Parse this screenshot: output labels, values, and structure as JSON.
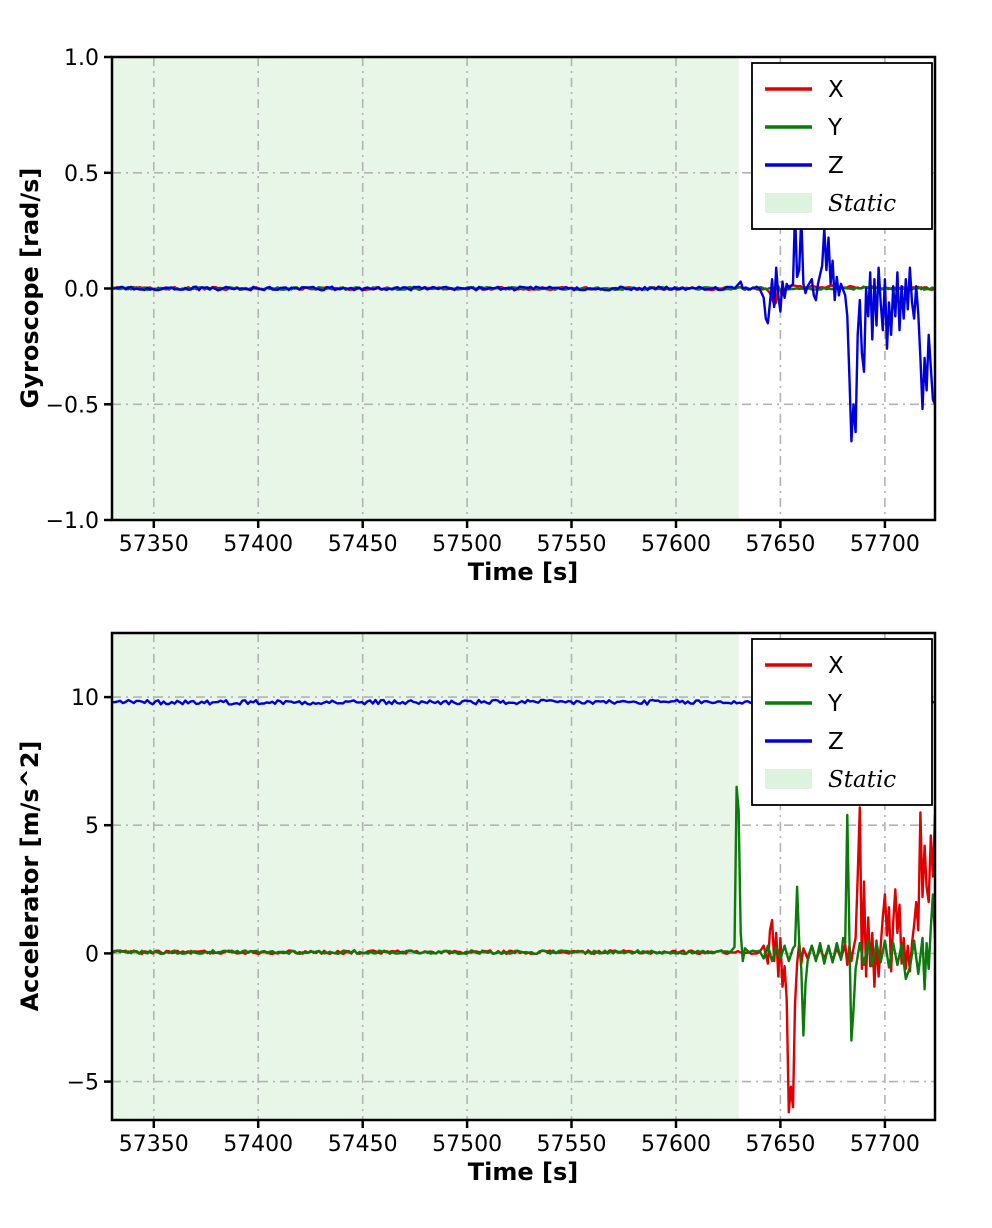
{
  "style": {
    "background": "#ffffff",
    "grid_color": "#b3b3b3",
    "spine_color": "#000000",
    "static_fill": "#e7f6e7",
    "legend_static_fill": "#ddf3dd"
  },
  "chart_data": [
    {
      "type": "line",
      "title": "",
      "xlabel": "Time [s]",
      "ylabel": "Gyroscope [rad/s]",
      "xlim": [
        57330,
        57724
      ],
      "ylim": [
        -1.0,
        1.0
      ],
      "xticks": [
        57350,
        57400,
        57450,
        57500,
        57550,
        57600,
        57650,
        57700
      ],
      "xtick_labels": [
        "57350",
        "57400",
        "57450",
        "57500",
        "57550",
        "57600",
        "57650",
        "57700"
      ],
      "yticks": [
        -1.0,
        -0.5,
        0.0,
        0.5,
        1.0
      ],
      "ytick_labels": [
        "−1.0",
        "−0.5",
        "0.0",
        "0.5",
        "1.0"
      ],
      "grid": true,
      "static_region": {
        "label": "Static",
        "x0": 57330,
        "x1": 57630
      },
      "legend": {
        "position": "upper right",
        "entries": [
          {
            "label": "X",
            "type": "line",
            "color": "#e00000"
          },
          {
            "label": "Y",
            "type": "line",
            "color": "#0a7a0a"
          },
          {
            "label": "Z",
            "type": "line",
            "color": "#0000dd"
          },
          {
            "label": "Static",
            "type": "patch",
            "color": "#ddf3dd",
            "italic": true
          }
        ]
      },
      "series": [
        {
          "name": "X",
          "color": "#e00000",
          "noise": 0.006,
          "points": [
            [
              57330,
              0
            ],
            [
              57643,
              0
            ],
            [
              57645,
              -0.02
            ],
            [
              57647,
              -0.07
            ],
            [
              57648,
              -0.06
            ],
            [
              57649,
              0.01
            ],
            [
              57651,
              -0.03
            ],
            [
              57653,
              0.01
            ],
            [
              57724,
              0
            ]
          ]
        },
        {
          "name": "Y",
          "color": "#0a7a0a",
          "noise": 0.006,
          "points": [
            [
              57330,
              0
            ],
            [
              57724,
              0
            ]
          ]
        },
        {
          "name": "Z",
          "color": "#0000dd",
          "noise": 0.008,
          "points": [
            [
              57330,
              0
            ],
            [
              57628,
              0
            ],
            [
              57630,
              0.02
            ],
            [
              57631,
              0.03
            ],
            [
              57632,
              0
            ],
            [
              57640,
              0
            ],
            [
              57642,
              -0.04
            ],
            [
              57643,
              -0.13
            ],
            [
              57644,
              -0.15
            ],
            [
              57645,
              -0.06
            ],
            [
              57646,
              0.04
            ],
            [
              57647,
              -0.08
            ],
            [
              57648,
              0.09
            ],
            [
              57649,
              -0.03
            ],
            [
              57650,
              -0.1
            ],
            [
              57651,
              0.03
            ],
            [
              57652,
              -0.04
            ],
            [
              57653,
              0.02
            ],
            [
              57654,
              0
            ],
            [
              57656,
              0.02
            ],
            [
              57657,
              0.33
            ],
            [
              57658,
              0.05
            ],
            [
              57659,
              0.08
            ],
            [
              57660,
              0.31
            ],
            [
              57661,
              0.02
            ],
            [
              57662,
              -0.02
            ],
            [
              57663,
              0.01
            ],
            [
              57665,
              0.04
            ],
            [
              57666,
              -0.03
            ],
            [
              57667,
              -0.05
            ],
            [
              57668,
              0.02
            ],
            [
              57670,
              0.1
            ],
            [
              57671,
              0.26
            ],
            [
              57672,
              0.08
            ],
            [
              57673,
              0.22
            ],
            [
              57674,
              0.02
            ],
            [
              57675,
              0.12
            ],
            [
              57676,
              -0.05
            ],
            [
              57677,
              0.05
            ],
            [
              57678,
              -0.03
            ],
            [
              57679,
              0.02
            ],
            [
              57681,
              -0.03
            ],
            [
              57682,
              -0.12
            ],
            [
              57683,
              -0.38
            ],
            [
              57684,
              -0.66
            ],
            [
              57685,
              -0.5
            ],
            [
              57686,
              -0.62
            ],
            [
              57687,
              -0.2
            ],
            [
              57688,
              -0.05
            ],
            [
              57689,
              -0.28
            ],
            [
              57690,
              -0.36
            ],
            [
              57691,
              0
            ],
            [
              57692,
              -0.12
            ],
            [
              57693,
              0.07
            ],
            [
              57694,
              -0.22
            ],
            [
              57695,
              0.04
            ],
            [
              57696,
              -0.16
            ],
            [
              57697,
              0.09
            ],
            [
              57698,
              -0.06
            ],
            [
              57699,
              -0.18
            ],
            [
              57700,
              0.04
            ],
            [
              57701,
              -0.26
            ],
            [
              57702,
              -0.06
            ],
            [
              57703,
              -0.2
            ],
            [
              57704,
              0.01
            ],
            [
              57705,
              -0.12
            ],
            [
              57706,
              0.07
            ],
            [
              57707,
              -0.18
            ],
            [
              57708,
              0.01
            ],
            [
              57709,
              -0.13
            ],
            [
              57710,
              0.04
            ],
            [
              57711,
              -0.09
            ],
            [
              57712,
              0.09
            ],
            [
              57713,
              -0.06
            ],
            [
              57714,
              -0.13
            ],
            [
              57715,
              0.01
            ],
            [
              57716,
              -0.11
            ],
            [
              57717,
              -0.3
            ],
            [
              57718,
              -0.52
            ],
            [
              57719,
              -0.3
            ],
            [
              57720,
              -0.44
            ],
            [
              57721,
              -0.2
            ],
            [
              57722,
              -0.34
            ],
            [
              57723,
              -0.48
            ],
            [
              57724,
              -0.5
            ]
          ]
        }
      ]
    },
    {
      "type": "line",
      "title": "",
      "xlabel": "Time [s]",
      "ylabel": "Accelerator [m/s^2]",
      "xlim": [
        57330,
        57724
      ],
      "ylim": [
        -6.5,
        12.5
      ],
      "xticks": [
        57350,
        57400,
        57450,
        57500,
        57550,
        57600,
        57650,
        57700
      ],
      "xtick_labels": [
        "57350",
        "57400",
        "57450",
        "57500",
        "57550",
        "57600",
        "57650",
        "57700"
      ],
      "yticks": [
        -5,
        0,
        5,
        10
      ],
      "ytick_labels": [
        "−5",
        "0",
        "5",
        "10"
      ],
      "grid": true,
      "static_region": {
        "label": "Static",
        "x0": 57330,
        "x1": 57630
      },
      "legend": {
        "position": "upper right",
        "entries": [
          {
            "label": "X",
            "type": "line",
            "color": "#e00000"
          },
          {
            "label": "Y",
            "type": "line",
            "color": "#0a7a0a"
          },
          {
            "label": "Z",
            "type": "line",
            "color": "#0000dd"
          },
          {
            "label": "Static",
            "type": "patch",
            "color": "#ddf3dd",
            "italic": true
          }
        ]
      },
      "series": [
        {
          "name": "X",
          "color": "#e00000",
          "noise": 0.07,
          "points": [
            [
              57330,
              0.05
            ],
            [
              57640,
              0.05
            ],
            [
              57642,
              0.3
            ],
            [
              57644,
              -0.4
            ],
            [
              57645,
              0.9
            ],
            [
              57646,
              1.3
            ],
            [
              57647,
              -0.3
            ],
            [
              57648,
              0.8
            ],
            [
              57649,
              -0.9
            ],
            [
              57650,
              0.6
            ],
            [
              57651,
              -1.3
            ],
            [
              57652,
              -0.5
            ],
            [
              57653,
              -1.8
            ],
            [
              57654,
              -6.2
            ],
            [
              57655,
              -5.2
            ],
            [
              57656,
              -6.0
            ],
            [
              57657,
              -2.0
            ],
            [
              57658,
              -0.4
            ],
            [
              57659,
              0.4
            ],
            [
              57660,
              -0.4
            ],
            [
              57661,
              0.2
            ],
            [
              57663,
              -0.2
            ],
            [
              57665,
              0.3
            ],
            [
              57667,
              -0.25
            ],
            [
              57669,
              0.2
            ],
            [
              57671,
              -0.2
            ],
            [
              57673,
              0.25
            ],
            [
              57675,
              -0.3
            ],
            [
              57677,
              0.2
            ],
            [
              57679,
              -0.2
            ],
            [
              57681,
              0.35
            ],
            [
              57682,
              -0.45
            ],
            [
              57683,
              0.3
            ],
            [
              57684,
              -0.3
            ],
            [
              57685,
              0.2
            ],
            [
              57686,
              0.6
            ],
            [
              57687,
              3.0
            ],
            [
              57688,
              5.7
            ],
            [
              57689,
              -0.6
            ],
            [
              57690,
              2.8
            ],
            [
              57691,
              -0.9
            ],
            [
              57692,
              1.4
            ],
            [
              57693,
              -0.5
            ],
            [
              57694,
              0.8
            ],
            [
              57695,
              -1.3
            ],
            [
              57696,
              0.5
            ],
            [
              57697,
              -0.9
            ],
            [
              57698,
              0.3
            ],
            [
              57699,
              1.4
            ],
            [
              57700,
              2.3
            ],
            [
              57701,
              0.7
            ],
            [
              57702,
              1.8
            ],
            [
              57703,
              -0.7
            ],
            [
              57704,
              1.2
            ],
            [
              57705,
              2.5
            ],
            [
              57706,
              0.8
            ],
            [
              57707,
              1.9
            ],
            [
              57708,
              -0.4
            ],
            [
              57709,
              0.6
            ],
            [
              57710,
              -0.6
            ],
            [
              57711,
              0.3
            ],
            [
              57712,
              -0.7
            ],
            [
              57713,
              0.4
            ],
            [
              57714,
              1.1
            ],
            [
              57715,
              2.0
            ],
            [
              57716,
              0.9
            ],
            [
              57717,
              5.5
            ],
            [
              57718,
              2.2
            ],
            [
              57719,
              4.2
            ],
            [
              57720,
              2.6
            ],
            [
              57721,
              2.0
            ],
            [
              57722,
              4.6
            ],
            [
              57723,
              3.0
            ],
            [
              57724,
              5.4
            ]
          ]
        },
        {
          "name": "Y",
          "color": "#0a7a0a",
          "noise": 0.07,
          "points": [
            [
              57330,
              0.05
            ],
            [
              57626,
              0.05
            ],
            [
              57628,
              0.25
            ],
            [
              57629,
              6.5
            ],
            [
              57630,
              5.6
            ],
            [
              57631,
              0.8
            ],
            [
              57632,
              -0.3
            ],
            [
              57633,
              0.2
            ],
            [
              57635,
              0.05
            ],
            [
              57640,
              0.1
            ],
            [
              57642,
              -0.2
            ],
            [
              57644,
              0.3
            ],
            [
              57646,
              -0.3
            ],
            [
              57648,
              0.25
            ],
            [
              57650,
              -0.2
            ],
            [
              57652,
              0.3
            ],
            [
              57654,
              -0.3
            ],
            [
              57656,
              0.2
            ],
            [
              57657,
              0.3
            ],
            [
              57658,
              2.6
            ],
            [
              57659,
              0.4
            ],
            [
              57660,
              -0.6
            ],
            [
              57661,
              -3.2
            ],
            [
              57662,
              -1.2
            ],
            [
              57663,
              -0.3
            ],
            [
              57665,
              0.3
            ],
            [
              57667,
              -0.3
            ],
            [
              57669,
              0.4
            ],
            [
              57671,
              -0.4
            ],
            [
              57673,
              0.3
            ],
            [
              57675,
              -0.35
            ],
            [
              57677,
              0.4
            ],
            [
              57679,
              -0.25
            ],
            [
              57680,
              0.6
            ],
            [
              57681,
              0.4
            ],
            [
              57682,
              5.4
            ],
            [
              57683,
              0.6
            ],
            [
              57684,
              -3.4
            ],
            [
              57685,
              -2.2
            ],
            [
              57686,
              -0.6
            ],
            [
              57688,
              0.4
            ],
            [
              57690,
              -0.45
            ],
            [
              57692,
              0.5
            ],
            [
              57694,
              -0.5
            ],
            [
              57696,
              0.4
            ],
            [
              57698,
              -0.35
            ],
            [
              57700,
              0.5
            ],
            [
              57702,
              -0.55
            ],
            [
              57704,
              0.4
            ],
            [
              57706,
              -0.45
            ],
            [
              57708,
              0.35
            ],
            [
              57710,
              -1.0
            ],
            [
              57712,
              -0.55
            ],
            [
              57714,
              0.5
            ],
            [
              57716,
              -0.8
            ],
            [
              57718,
              0.6
            ],
            [
              57719,
              -1.4
            ],
            [
              57720,
              0.4
            ],
            [
              57721,
              -0.6
            ],
            [
              57722,
              1.0
            ],
            [
              57723,
              2.3
            ],
            [
              57724,
              0.6
            ]
          ]
        },
        {
          "name": "Z",
          "color": "#0000dd",
          "noise": 0.09,
          "points": [
            [
              57330,
              9.8
            ],
            [
              57724,
              9.8
            ]
          ]
        }
      ]
    }
  ]
}
